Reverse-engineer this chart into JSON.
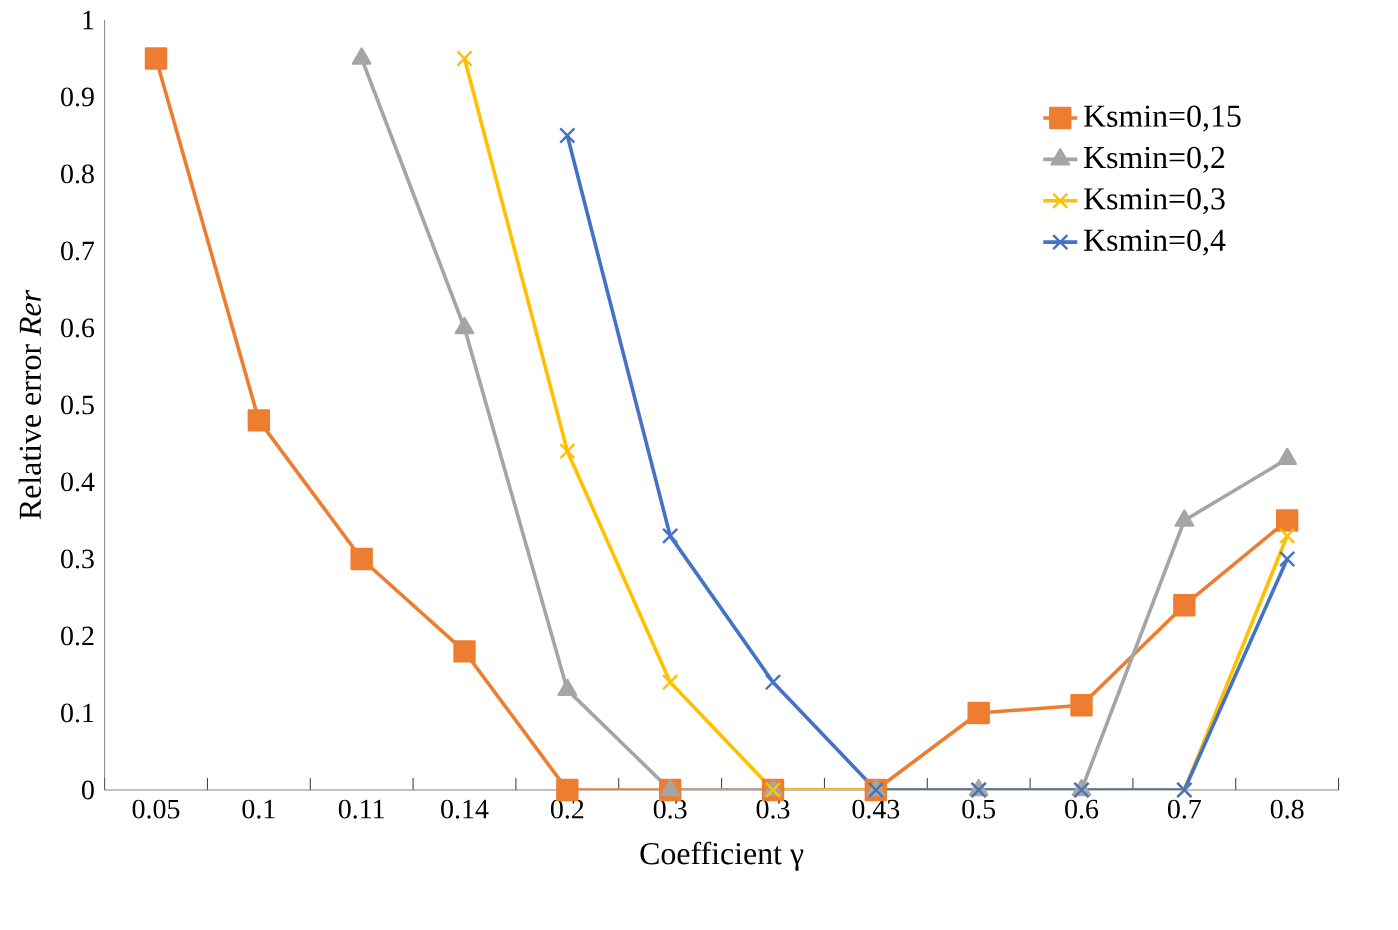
{
  "chart_data": {
    "type": "line",
    "xlabel": "Coefficient γ",
    "ylabel": "Relative error *Rer*",
    "categories": [
      "0.05",
      "0.1",
      "0.11",
      "0.14",
      "0.2",
      "0.3",
      "0.3",
      "0.43",
      "0.5",
      "0.6",
      "0.7",
      "0.8"
    ],
    "series": [
      {
        "name": "Ksmin=0,15",
        "color": "#ed7d31",
        "marker": "square",
        "values": [
          0.95,
          0.48,
          0.3,
          0.18,
          0,
          0,
          0,
          0,
          0.1,
          0.11,
          0.24,
          0.35
        ]
      },
      {
        "name": "Ksmin=0,2",
        "color": "#a5a5a5",
        "marker": "triangle",
        "values": [
          null,
          null,
          0.95,
          0.6,
          0.13,
          0,
          0,
          0,
          0,
          0,
          0.35,
          0.43
        ]
      },
      {
        "name": "Ksmin=0,3",
        "color": "#ffc000",
        "marker": "cross",
        "values": [
          null,
          null,
          null,
          0.95,
          0.44,
          0.14,
          0,
          0,
          0,
          0,
          0,
          0.33
        ]
      },
      {
        "name": "Ksmin=0,4",
        "color": "#4472c4",
        "marker": "cross",
        "values": [
          null,
          null,
          null,
          null,
          0.85,
          0.33,
          0.14,
          0,
          0,
          0,
          0,
          0.3
        ]
      }
    ],
    "ylim": [
      0,
      1
    ],
    "yticks": [
      0,
      0.1,
      0.2,
      0.3,
      0.4,
      0.5,
      0.6,
      0.7,
      0.8,
      0.9,
      1
    ],
    "grid": false,
    "legend": "top right"
  }
}
